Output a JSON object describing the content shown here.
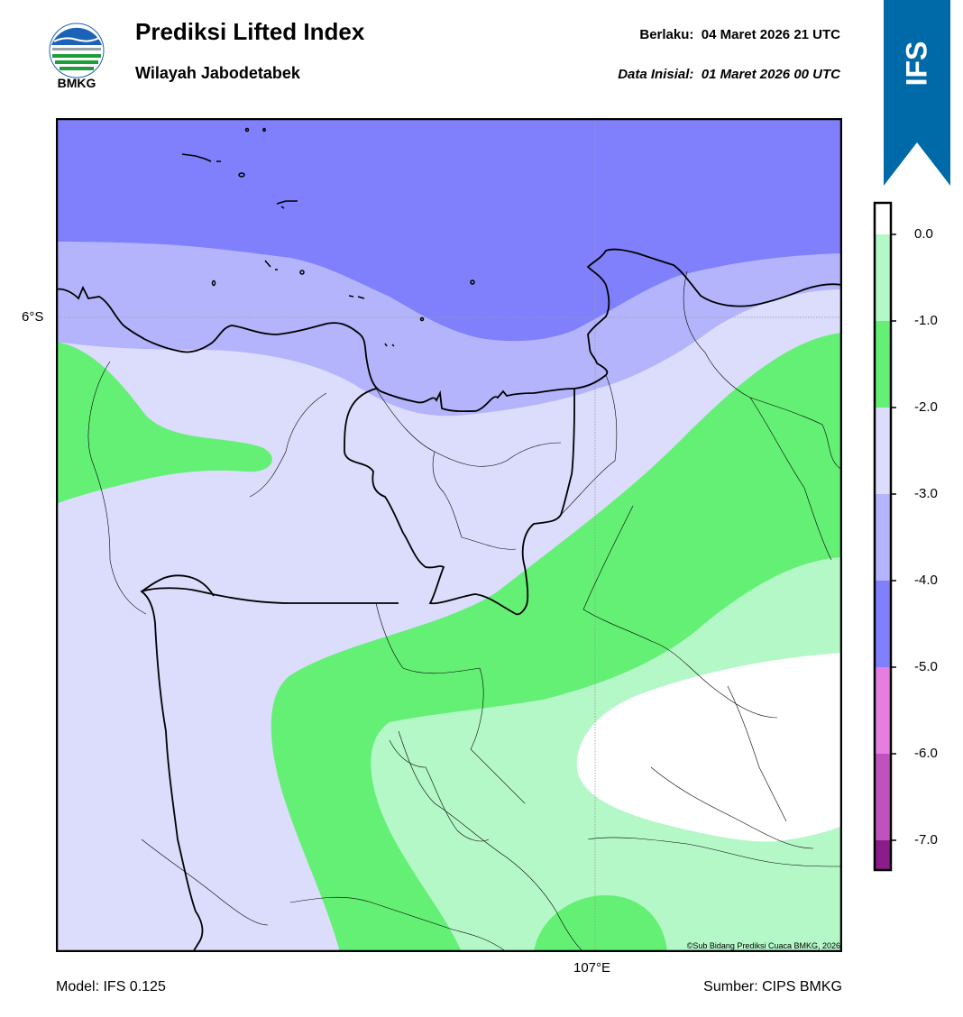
{
  "header": {
    "logo_text": "BMKG",
    "title": "Prediksi Lifted Index",
    "subtitle": "Wilayah Jabodetabek",
    "valid_label": "Berlaku:",
    "valid_time": "04 Maret 2026 21 UTC",
    "init_label": "Data Inisial:",
    "init_time": "01 Maret 2026 00 UTC",
    "model_badge": "IFS"
  },
  "map": {
    "lat_label": "6°S",
    "lon_label": "107°E",
    "credit": "©Sub Bidang Prediksi Cuaca BMKG, 2026"
  },
  "footer": {
    "model": "Model: IFS 0.125",
    "source": "Sumber: CIPS BMKG"
  },
  "colorbar": {
    "ticks": [
      "0.0",
      "-1.0",
      "-2.0",
      "-3.0",
      "-4.0",
      "-5.0",
      "-6.0",
      "-7.0"
    ],
    "colors": {
      "above_0": "#ffffff",
      "0_to_-1": "#b4f8c8",
      "-1_to_-2": "#64f075",
      "-2_to_-3": "#dcdcfc",
      "-3_to_-4": "#b4b4fc",
      "-4_to_-5": "#8080fc",
      "-5_to_-6": "#e67ee2",
      "-6_to_-7": "#c052bd",
      "below_-7": "#8c1c8a"
    }
  },
  "colors": {
    "ifs_ribbon": "#0069a8"
  }
}
